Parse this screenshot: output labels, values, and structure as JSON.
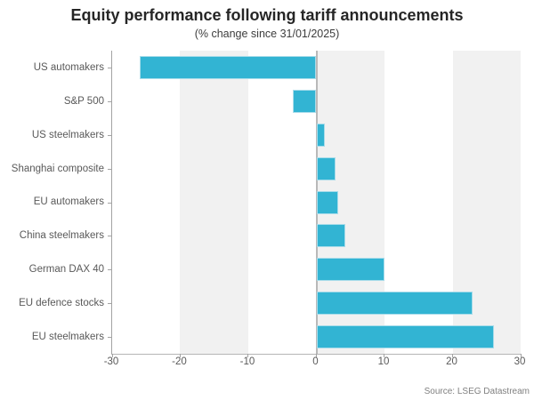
{
  "chart": {
    "title": "Equity performance following tariff announcements",
    "subtitle": "(% change since 31/01/2025)",
    "source": "Source: LSEG Datastream"
  },
  "chart_data": {
    "type": "bar",
    "orientation": "horizontal",
    "title": "Equity performance following tariff announcements",
    "subtitle": "(% change since 31/01/2025)",
    "categories": [
      "US automakers",
      "S&P 500",
      "US steelmakers",
      "Shanghai composite",
      "EU automakers",
      "China steelmakers",
      "German DAX 40",
      "EU defence stocks",
      "EU steelmakers"
    ],
    "values": [
      -26.0,
      -3.4,
      1.2,
      2.8,
      3.2,
      4.3,
      10.0,
      22.9,
      26.1
    ],
    "xlabel": "",
    "ylabel": "",
    "xlim": [
      -30,
      30
    ],
    "x_ticks": [
      -30,
      -20,
      -10,
      0,
      10,
      20,
      30
    ],
    "grid": "alternating vertical bands of 10 units, shaded on [-20,-10], [0,10], [20,30]",
    "legend": "none",
    "colors": {
      "bar": "#32b4d3",
      "bar_border": "#a9dcea",
      "band": "#f1f1f1",
      "zero_line": "#b9b9b9",
      "axis_line": "#a3a3a3",
      "tick_text": "#595959",
      "title_text": "#262626",
      "subtitle_text": "#3d3d3d",
      "source_text": "#808080"
    }
  }
}
